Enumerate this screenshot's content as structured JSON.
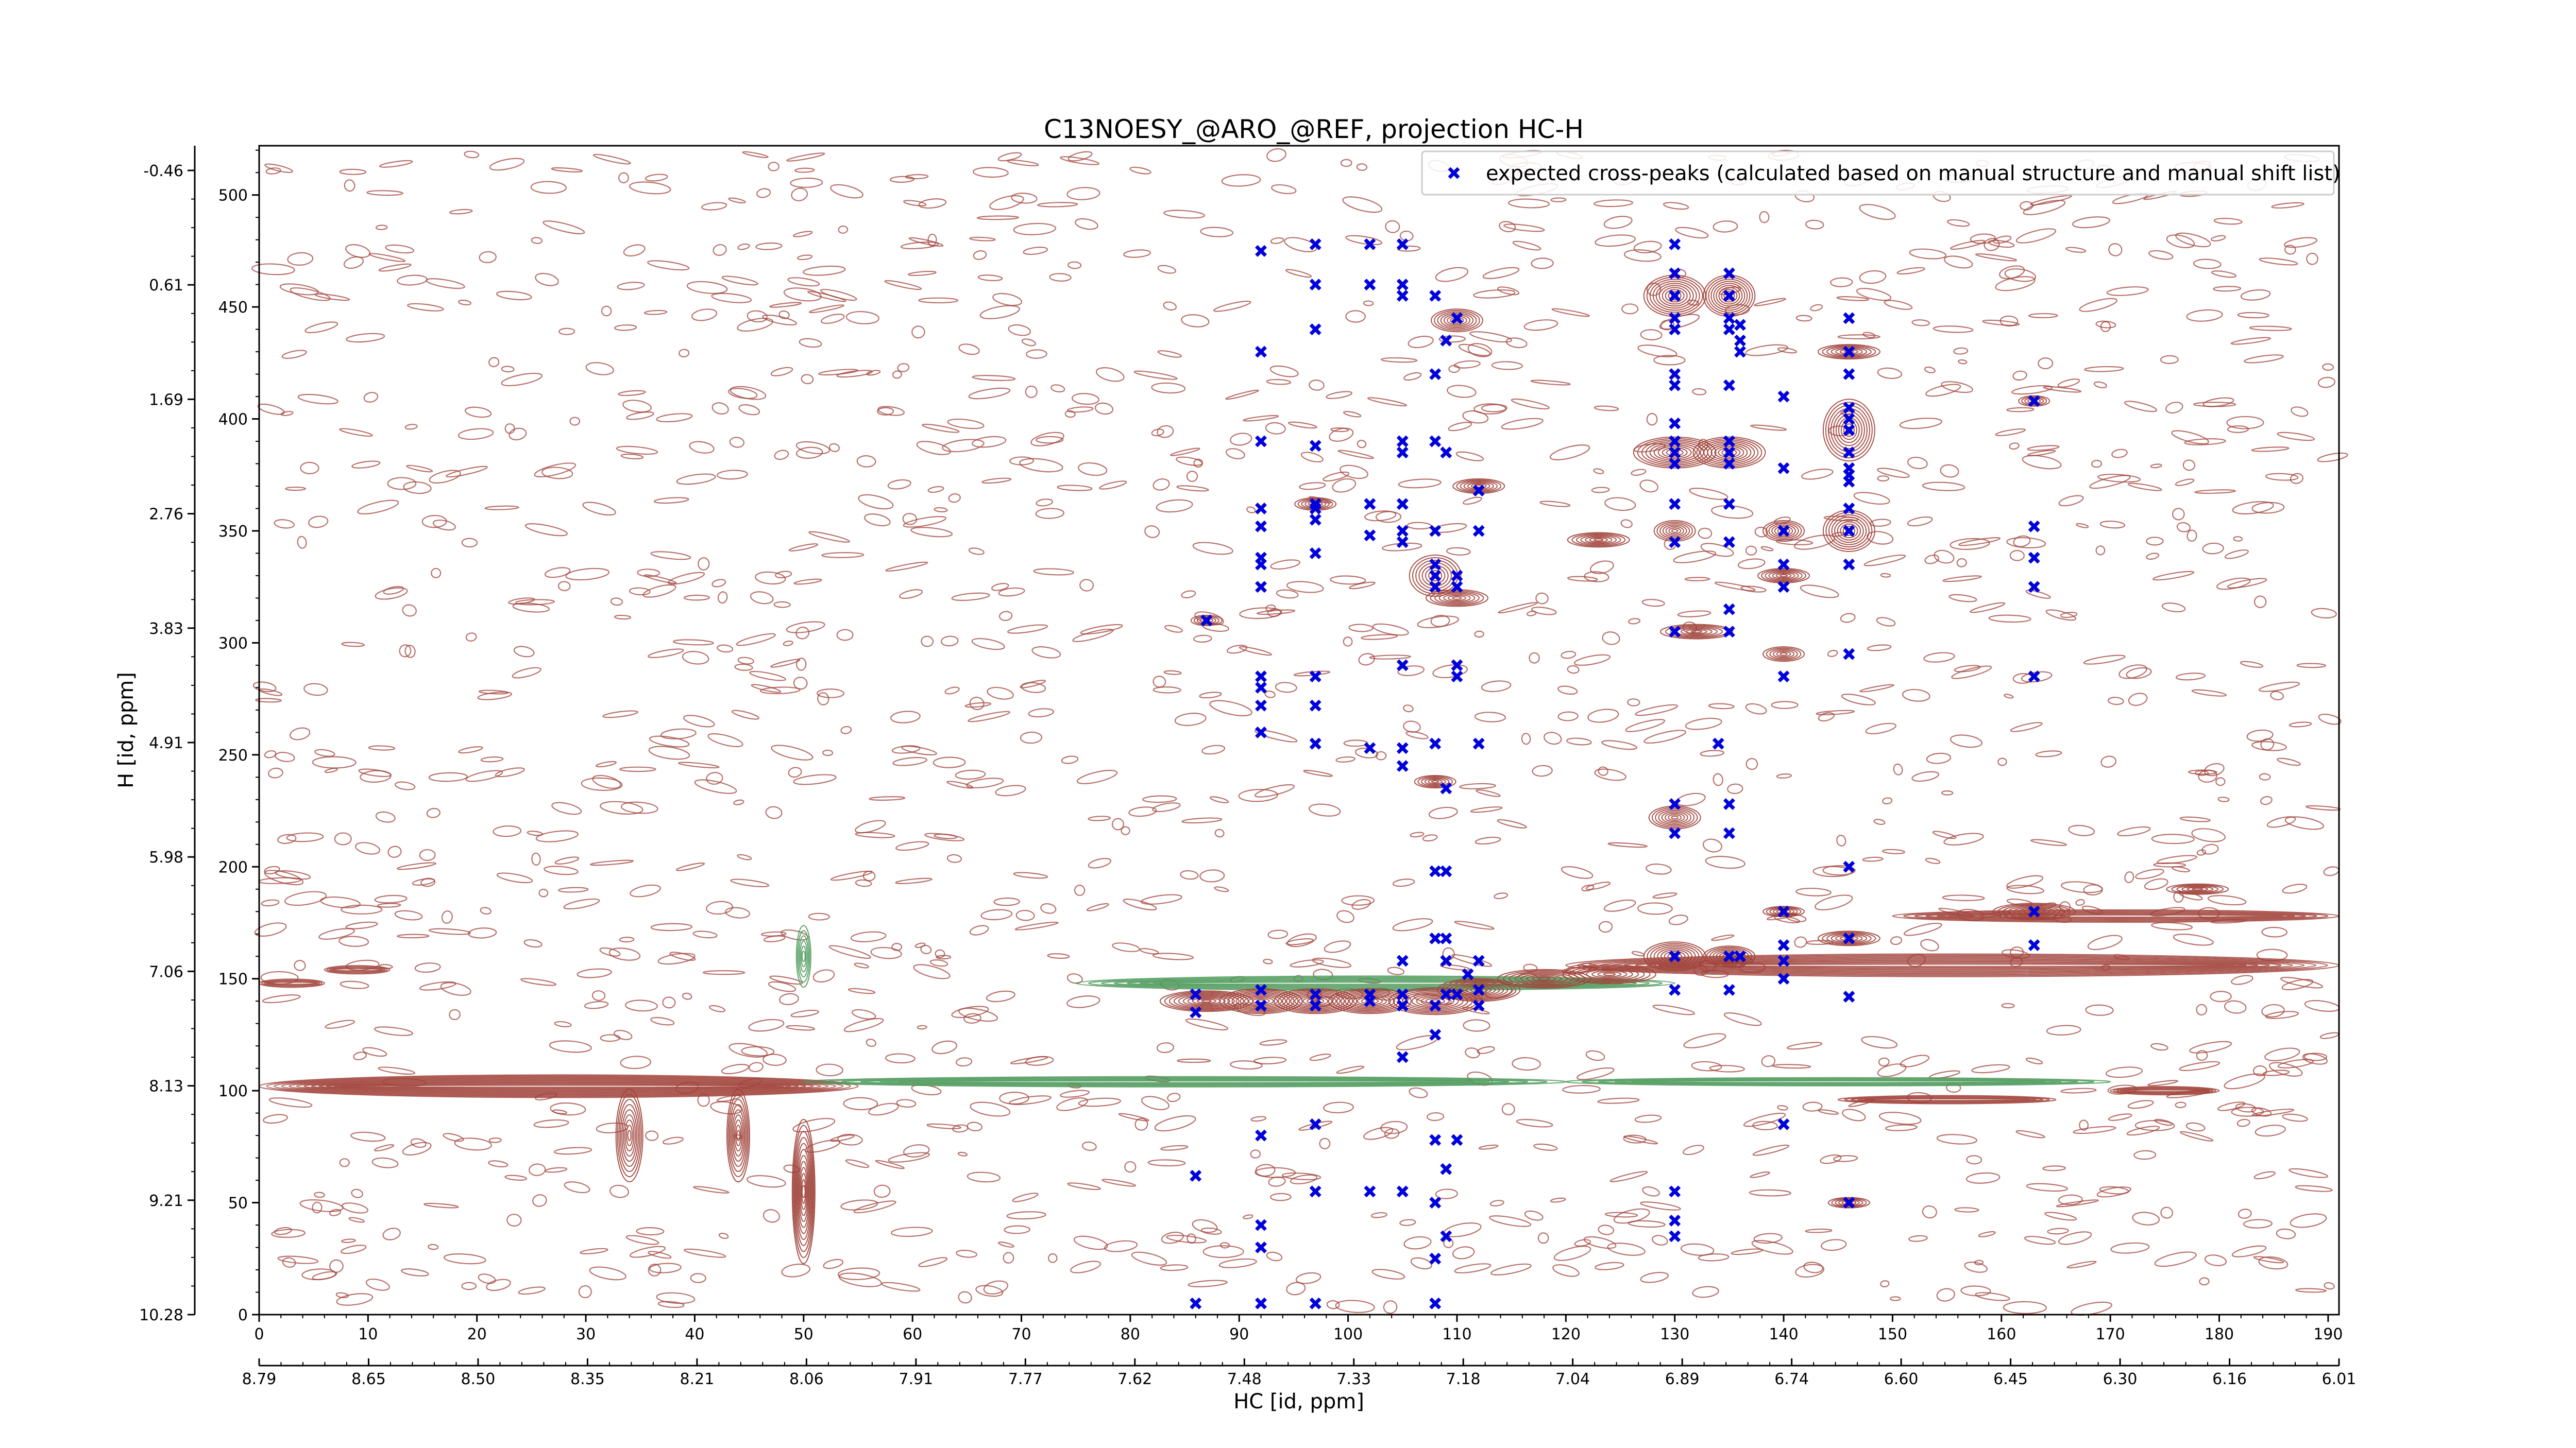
{
  "chart_data": {
    "type": "scatter",
    "title": "C13NOESY_@ARO_@REF, projection HC-H",
    "xlabel": "HC [id, ppm]",
    "ylabel": "H [id, ppm]",
    "xlim": [
      0,
      191
    ],
    "ylim": [
      0,
      522
    ],
    "x_ticks": [
      "0",
      "10",
      "20",
      "30",
      "40",
      "50",
      "60",
      "70",
      "80",
      "90",
      "100",
      "110",
      "120",
      "130",
      "140",
      "150",
      "160",
      "170",
      "180",
      "190"
    ],
    "y_ticks": [
      "0",
      "50",
      "100",
      "150",
      "200",
      "250",
      "300",
      "350",
      "400",
      "450",
      "500"
    ],
    "x2_ticks": [
      "8.79",
      "8.65",
      "8.50",
      "8.35",
      "8.21",
      "8.06",
      "7.91",
      "7.77",
      "7.62",
      "7.48",
      "7.33",
      "7.18",
      "7.04",
      "6.89",
      "6.74",
      "6.60",
      "6.45",
      "6.30",
      "6.16",
      "6.01"
    ],
    "y2_ticks": [
      "10.28",
      "9.21",
      "8.13",
      "7.06",
      "5.98",
      "4.91",
      "3.83",
      "2.76",
      "1.69",
      "0.61",
      "-0.46"
    ],
    "legend": {
      "placement": "upper-right",
      "marker": "blue-x",
      "entries": [
        "expected cross-peaks (calculated based on manual structure and manual shift list)"
      ]
    },
    "series_colors": {
      "positive_contours": "#a0423a",
      "negative_contours": "#4e9a5c",
      "expected_peaks": "#0000dd"
    },
    "series": [
      {
        "label": "expected cross-peaks",
        "points": [
          [
            86,
            5
          ],
          [
            92,
            5
          ],
          [
            97,
            5
          ],
          [
            108,
            5
          ],
          [
            92,
            30
          ],
          [
            92,
            40
          ],
          [
            108,
            25
          ],
          [
            109,
            35
          ],
          [
            130,
            35
          ],
          [
            130,
            42
          ],
          [
            86,
            62
          ],
          [
            97,
            55
          ],
          [
            102,
            55
          ],
          [
            105,
            55
          ],
          [
            108,
            50
          ],
          [
            109,
            65
          ],
          [
            130,
            55
          ],
          [
            146,
            50
          ],
          [
            92,
            80
          ],
          [
            97,
            85
          ],
          [
            108,
            78
          ],
          [
            110,
            78
          ],
          [
            140,
            85
          ],
          [
            105,
            115
          ],
          [
            108,
            125
          ],
          [
            86,
            143
          ],
          [
            86,
            135
          ],
          [
            92,
            138
          ],
          [
            92,
            145
          ],
          [
            97,
            138
          ],
          [
            97,
            143
          ],
          [
            102,
            140
          ],
          [
            102,
            143
          ],
          [
            105,
            138
          ],
          [
            105,
            143
          ],
          [
            108,
            138
          ],
          [
            109,
            143
          ],
          [
            110,
            143
          ],
          [
            112,
            138
          ],
          [
            112,
            145
          ],
          [
            130,
            145
          ],
          [
            130,
            160
          ],
          [
            135,
            145
          ],
          [
            135,
            160
          ],
          [
            136,
            160
          ],
          [
            140,
            150
          ],
          [
            140,
            158
          ],
          [
            140,
            165
          ],
          [
            140,
            180
          ],
          [
            146,
            168
          ],
          [
            146,
            142
          ],
          [
            163,
            180
          ],
          [
            163,
            165
          ],
          [
            105,
            158
          ],
          [
            108,
            168
          ],
          [
            109,
            168
          ],
          [
            109,
            158
          ],
          [
            111,
            152
          ],
          [
            112,
            158
          ],
          [
            130,
            215
          ],
          [
            130,
            228
          ],
          [
            135,
            215
          ],
          [
            135,
            228
          ],
          [
            108,
            198
          ],
          [
            109,
            198
          ],
          [
            146,
            200
          ],
          [
            92,
            260
          ],
          [
            97,
            255
          ],
          [
            102,
            253
          ],
          [
            105,
            253
          ],
          [
            105,
            245
          ],
          [
            108,
            255
          ],
          [
            109,
            235
          ],
          [
            112,
            255
          ],
          [
            134,
            255
          ],
          [
            92,
            285
          ],
          [
            92,
            280
          ],
          [
            92,
            272
          ],
          [
            97,
            285
          ],
          [
            97,
            272
          ],
          [
            105,
            290
          ],
          [
            110,
            290
          ],
          [
            110,
            285
          ],
          [
            140,
            285
          ],
          [
            146,
            295
          ],
          [
            163,
            285
          ],
          [
            87,
            310
          ],
          [
            92,
            325
          ],
          [
            92,
            335
          ],
          [
            92,
            338
          ],
          [
            92,
            352
          ],
          [
            97,
            340
          ],
          [
            97,
            355
          ],
          [
            97,
            360
          ],
          [
            97,
            362
          ],
          [
            102,
            348
          ],
          [
            102,
            362
          ],
          [
            105,
            345
          ],
          [
            105,
            350
          ],
          [
            105,
            362
          ],
          [
            108,
            330
          ],
          [
            108,
            325
          ],
          [
            108,
            335
          ],
          [
            108,
            350
          ],
          [
            110,
            330
          ],
          [
            110,
            325
          ],
          [
            112,
            350
          ],
          [
            112,
            368
          ],
          [
            135,
            315
          ],
          [
            130,
            305
          ],
          [
            135,
            305
          ],
          [
            130,
            345
          ],
          [
            130,
            362
          ],
          [
            135,
            345
          ],
          [
            135,
            362
          ],
          [
            140,
            350
          ],
          [
            140,
            335
          ],
          [
            140,
            325
          ],
          [
            146,
            335
          ],
          [
            146,
            350
          ],
          [
            146,
            360
          ],
          [
            146,
            372
          ],
          [
            163,
            352
          ],
          [
            163,
            338
          ],
          [
            163,
            325
          ],
          [
            92,
            360
          ],
          [
            92,
            390
          ],
          [
            97,
            388
          ],
          [
            105,
            385
          ],
          [
            105,
            390
          ],
          [
            108,
            390
          ],
          [
            109,
            385
          ],
          [
            130,
            380
          ],
          [
            130,
            385
          ],
          [
            130,
            390
          ],
          [
            130,
            398
          ],
          [
            135,
            380
          ],
          [
            135,
            385
          ],
          [
            135,
            390
          ],
          [
            140,
            378
          ],
          [
            146,
            375
          ],
          [
            146,
            378
          ],
          [
            146,
            385
          ],
          [
            146,
            395
          ],
          [
            146,
            400
          ],
          [
            146,
            405
          ],
          [
            146,
            420
          ],
          [
            163,
            408
          ],
          [
            108,
            420
          ],
          [
            130,
            415
          ],
          [
            130,
            420
          ],
          [
            135,
            415
          ],
          [
            92,
            430
          ],
          [
            97,
            440
          ],
          [
            97,
            460
          ],
          [
            102,
            478
          ],
          [
            102,
            460
          ],
          [
            105,
            478
          ],
          [
            105,
            455
          ],
          [
            105,
            460
          ],
          [
            109,
            435
          ],
          [
            110,
            445
          ],
          [
            130,
            440
          ],
          [
            130,
            445
          ],
          [
            130,
            455
          ],
          [
            130,
            465
          ],
          [
            130,
            478
          ],
          [
            135,
            440
          ],
          [
            135,
            445
          ],
          [
            135,
            455
          ],
          [
            135,
            465
          ],
          [
            136,
            430
          ],
          [
            136,
            435
          ],
          [
            136,
            442
          ],
          [
            140,
            410
          ],
          [
            146,
            430
          ],
          [
            146,
            445
          ],
          [
            97,
            478
          ],
          [
            92,
            475
          ],
          [
            108,
            455
          ]
        ]
      }
    ]
  }
}
